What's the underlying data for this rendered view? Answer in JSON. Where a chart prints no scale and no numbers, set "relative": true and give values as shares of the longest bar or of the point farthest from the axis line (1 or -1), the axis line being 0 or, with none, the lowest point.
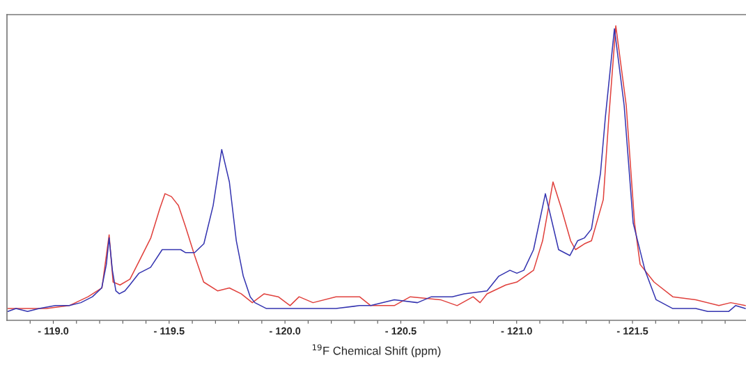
{
  "chart_data": {
    "type": "line",
    "relative": true,
    "xlabel": "$^{19}$F Chemical Shift (ppm)",
    "xlim": [
      -118.8,
      -121.99
    ],
    "xticks": [
      {
        "value": -118.9,
        "label": null
      },
      {
        "value": -119.0,
        "label": "- 119.0"
      },
      {
        "value": -119.1,
        "label": null
      },
      {
        "value": -119.2,
        "label": null
      },
      {
        "value": -119.3,
        "label": null
      },
      {
        "value": -119.4,
        "label": null
      },
      {
        "value": -119.5,
        "label": "- 119.5"
      },
      {
        "value": -119.6,
        "label": null
      },
      {
        "value": -119.7,
        "label": null
      },
      {
        "value": -119.8,
        "label": null
      },
      {
        "value": -119.9,
        "label": null
      },
      {
        "value": -120.0,
        "label": "- 120.0"
      },
      {
        "value": -120.1,
        "label": null
      },
      {
        "value": -120.2,
        "label": null
      },
      {
        "value": -120.3,
        "label": null
      },
      {
        "value": -120.4,
        "label": null
      },
      {
        "value": -120.5,
        "label": "- 120.5"
      },
      {
        "value": -120.6,
        "label": null
      },
      {
        "value": -120.7,
        "label": null
      },
      {
        "value": -120.8,
        "label": null
      },
      {
        "value": -120.9,
        "label": null
      },
      {
        "value": -121.0,
        "label": "- 121.0"
      },
      {
        "value": -121.1,
        "label": null
      },
      {
        "value": -121.2,
        "label": null
      },
      {
        "value": -121.3,
        "label": null
      },
      {
        "value": -121.4,
        "label": null
      },
      {
        "value": -121.5,
        "label": "- 121.5"
      },
      {
        "value": -121.6,
        "label": null
      },
      {
        "value": -121.7,
        "label": null
      },
      {
        "value": -121.8,
        "label": null
      },
      {
        "value": -121.9,
        "label": null
      }
    ],
    "tick_labels": "x",
    "grid": false,
    "legend": false,
    "marker": "none",
    "line_style": "solid",
    "series": [
      {
        "color": "#e0403c",
        "x": [
          -118.804,
          -118.868,
          -118.97,
          -119.069,
          -119.15,
          -119.21,
          -119.241,
          -119.258,
          -119.288,
          -119.331,
          -119.37,
          -119.421,
          -119.46,
          -119.482,
          -119.51,
          -119.54,
          -119.57,
          -119.61,
          -119.649,
          -119.709,
          -119.76,
          -119.811,
          -119.859,
          -119.91,
          -119.971,
          -120.022,
          -120.061,
          -120.121,
          -120.22,
          -120.322,
          -120.37,
          -120.472,
          -120.541,
          -120.671,
          -120.743,
          -120.812,
          -120.842,
          -120.872,
          -120.953,
          -121.001,
          -121.073,
          -121.112,
          -121.157,
          -121.193,
          -121.233,
          -121.254,
          -121.293,
          -121.323,
          -121.374,
          -121.398,
          -121.428,
          -121.473,
          -121.509,
          -121.533,
          -121.593,
          -121.674,
          -121.773,
          -121.873,
          -121.924,
          -121.987
        ],
        "values": [
          0.04,
          0.04,
          0.04,
          0.05,
          0.08,
          0.11,
          0.29,
          0.13,
          0.12,
          0.14,
          0.2,
          0.28,
          0.38,
          0.43,
          0.42,
          0.39,
          0.32,
          0.22,
          0.13,
          0.1,
          0.11,
          0.09,
          0.06,
          0.09,
          0.08,
          0.05,
          0.08,
          0.06,
          0.08,
          0.08,
          0.05,
          0.05,
          0.08,
          0.07,
          0.05,
          0.08,
          0.06,
          0.09,
          0.12,
          0.13,
          0.17,
          0.27,
          0.47,
          0.38,
          0.27,
          0.24,
          0.26,
          0.27,
          0.41,
          0.69,
          1.0,
          0.73,
          0.33,
          0.19,
          0.13,
          0.08,
          0.07,
          0.05,
          0.06,
          0.05
        ]
      },
      {
        "color": "#3434b0",
        "x": [
          -118.804,
          -118.839,
          -118.889,
          -118.939,
          -119.009,
          -119.069,
          -119.119,
          -119.169,
          -119.209,
          -119.229,
          -119.241,
          -119.255,
          -119.27,
          -119.285,
          -119.309,
          -119.33,
          -119.37,
          -119.42,
          -119.47,
          -119.51,
          -119.55,
          -119.57,
          -119.61,
          -119.65,
          -119.69,
          -119.727,
          -119.76,
          -119.79,
          -119.82,
          -119.85,
          -119.87,
          -119.92,
          -120.001,
          -120.091,
          -120.22,
          -120.322,
          -120.37,
          -120.472,
          -120.572,
          -120.632,
          -120.722,
          -120.773,
          -120.872,
          -120.923,
          -120.971,
          -121.001,
          -121.031,
          -121.073,
          -121.124,
          -121.151,
          -121.181,
          -121.23,
          -121.263,
          -121.293,
          -121.323,
          -121.362,
          -121.383,
          -121.422,
          -121.464,
          -121.503,
          -121.554,
          -121.602,
          -121.674,
          -121.773,
          -121.825,
          -121.915,
          -121.945,
          -121.987
        ],
        "values": [
          0.03,
          0.04,
          0.03,
          0.04,
          0.05,
          0.05,
          0.06,
          0.08,
          0.11,
          0.19,
          0.28,
          0.17,
          0.1,
          0.09,
          0.1,
          0.12,
          0.16,
          0.18,
          0.24,
          0.24,
          0.24,
          0.23,
          0.23,
          0.26,
          0.39,
          0.58,
          0.47,
          0.27,
          0.15,
          0.08,
          0.06,
          0.04,
          0.04,
          0.04,
          0.04,
          0.05,
          0.05,
          0.07,
          0.06,
          0.08,
          0.08,
          0.09,
          0.1,
          0.15,
          0.17,
          0.16,
          0.17,
          0.24,
          0.43,
          0.34,
          0.24,
          0.22,
          0.27,
          0.28,
          0.31,
          0.5,
          0.69,
          0.99,
          0.73,
          0.33,
          0.17,
          0.07,
          0.04,
          0.04,
          0.03,
          0.03,
          0.05,
          0.04
        ]
      }
    ]
  }
}
